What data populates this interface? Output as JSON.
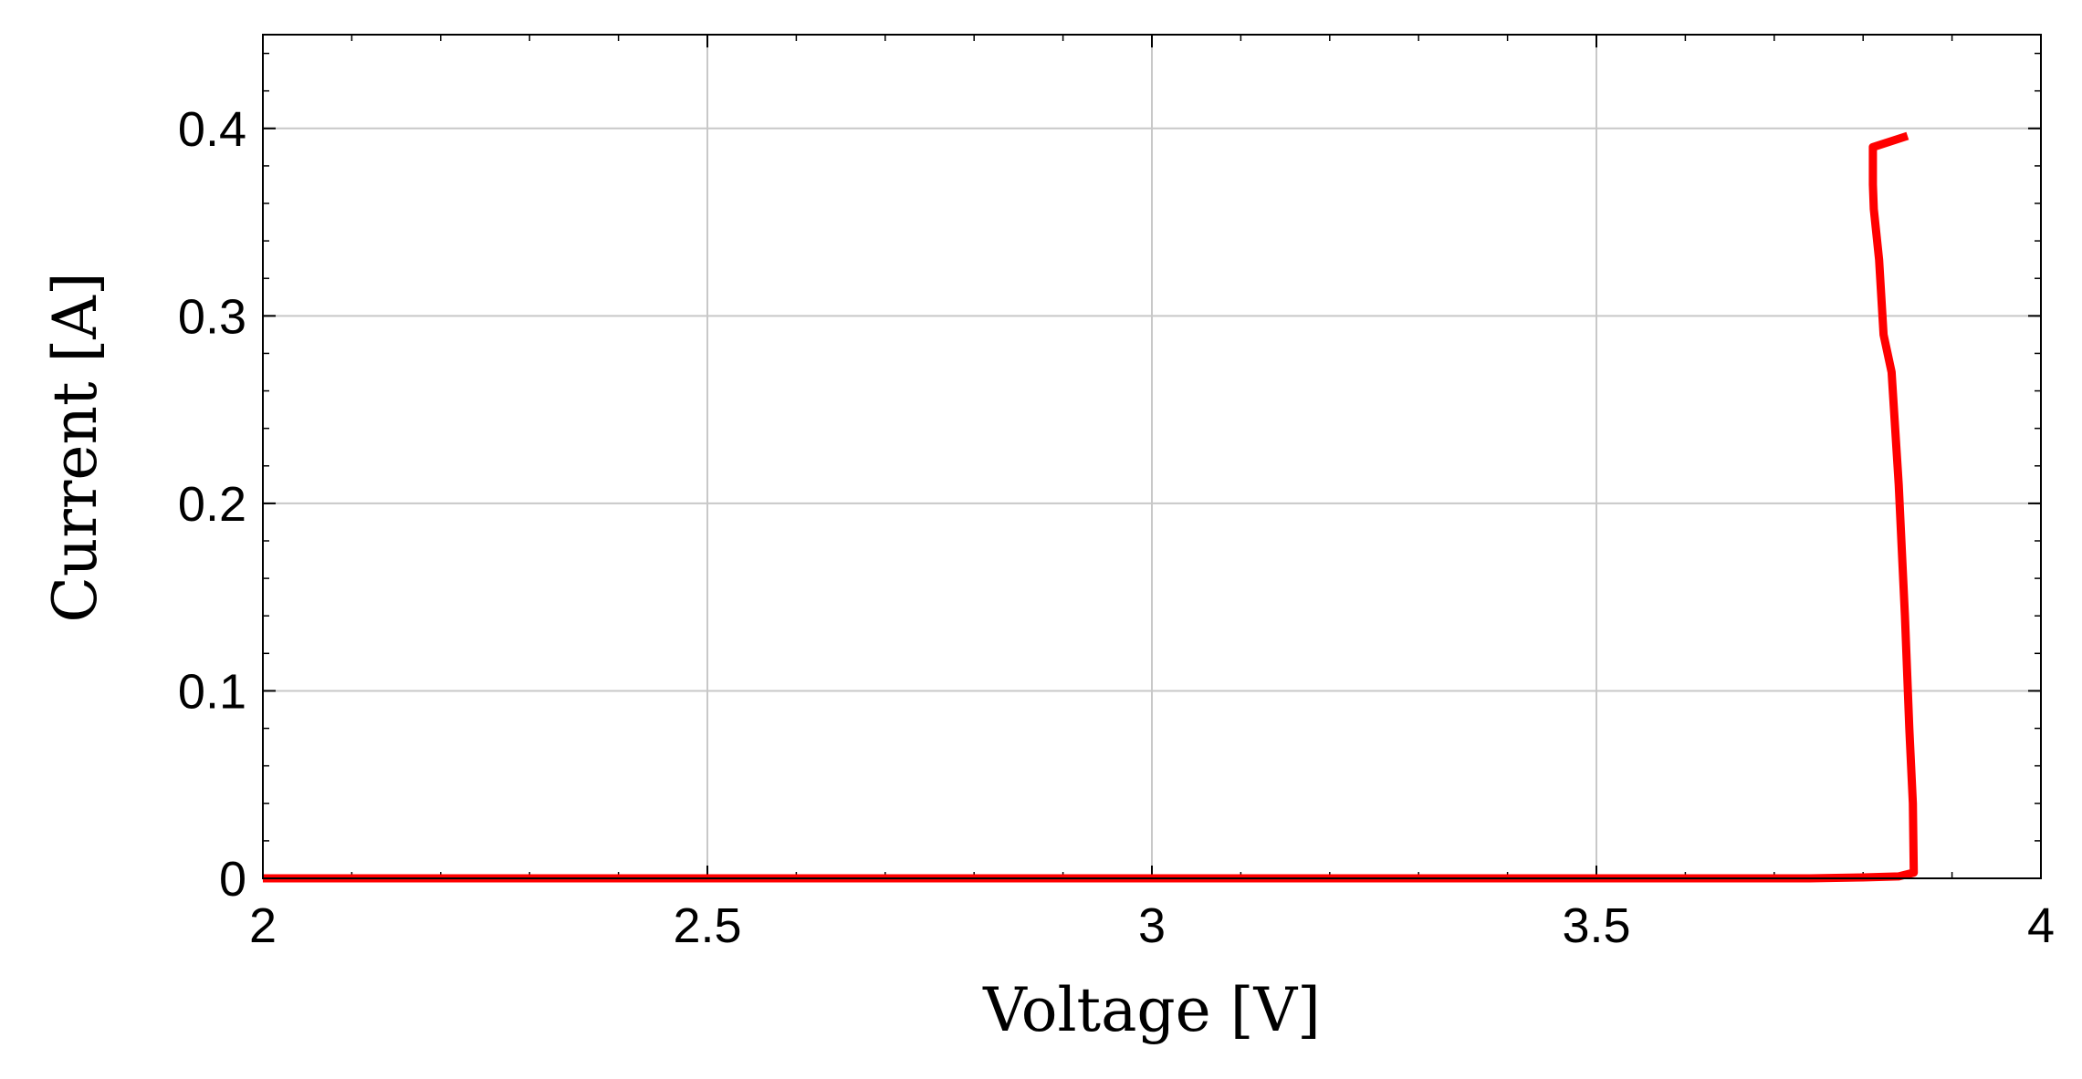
{
  "chart_data": {
    "type": "line",
    "title": "",
    "xlabel": "Voltage [V]",
    "ylabel": "Current [A]",
    "xlim": [
      2,
      4
    ],
    "ylim": [
      0,
      0.45
    ],
    "xticks": [
      2,
      2.5,
      3,
      3.5,
      4
    ],
    "xtick_labels": [
      "2",
      "2.5",
      "3",
      "3.5",
      "4"
    ],
    "yticks": [
      0,
      0.1,
      0.2,
      0.3,
      0.4
    ],
    "ytick_labels": [
      "0",
      "0.1",
      "0.2",
      "0.3",
      "0.4"
    ],
    "grid": true,
    "legend": false,
    "series": [
      {
        "color": "#ff0000",
        "x": [
          2.0,
          2.5,
          3.0,
          3.5,
          3.74,
          3.8,
          3.84,
          3.857,
          3.856,
          3.852,
          3.847,
          3.84,
          3.832,
          3.823,
          3.818,
          3.812,
          3.811,
          3.811,
          3.85
        ],
        "y": [
          0.0,
          0.0,
          0.0,
          0.0,
          0.0,
          0.0005,
          0.001,
          0.003,
          0.04,
          0.08,
          0.14,
          0.21,
          0.27,
          0.29,
          0.33,
          0.357,
          0.37,
          0.39,
          0.396
        ]
      }
    ]
  }
}
